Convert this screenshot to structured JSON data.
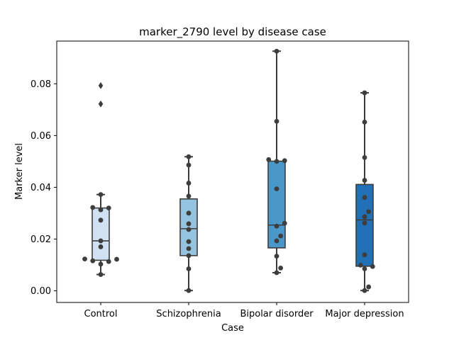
{
  "chart_data": {
    "type": "box",
    "title": "marker_2790 level by disease case",
    "xlabel": "Case",
    "ylabel": "Marker level",
    "ylim": [
      -0.0045,
      0.0965
    ],
    "yticks": [
      0.0,
      0.02,
      0.04,
      0.06,
      0.08
    ],
    "ytick_labels": [
      "0.00",
      "0.02",
      "0.04",
      "0.06",
      "0.08"
    ],
    "categories": [
      "Control",
      "Schizophrenia",
      "Bipolar disorder",
      "Major depression"
    ],
    "colors": [
      "#cfe1f2",
      "#94c4df",
      "#4a98c9",
      "#2270b5"
    ],
    "boxes": [
      {
        "q1": 0.0118,
        "median": 0.0193,
        "q3": 0.032,
        "whislo": 0.0063,
        "whishi": 0.0372,
        "fliers": [
          0.0793,
          0.0722
        ]
      },
      {
        "q1": 0.0136,
        "median": 0.024,
        "q3": 0.0355,
        "whislo": 0.0001,
        "whishi": 0.0518,
        "fliers": []
      },
      {
        "q1": 0.0166,
        "median": 0.0254,
        "q3": 0.0501,
        "whislo": 0.007,
        "whishi": 0.0926,
        "fliers": []
      },
      {
        "q1": 0.0095,
        "median": 0.0274,
        "q3": 0.0411,
        "whislo": 0.0001,
        "whishi": 0.0765,
        "fliers": []
      }
    ],
    "points": [
      [
        0.0372,
        0.0322,
        0.032,
        0.0313,
        0.0273,
        0.0193,
        0.017,
        0.0123,
        0.0122,
        0.0116,
        0.0113,
        0.0103,
        0.0063
      ],
      [
        0.0518,
        0.0486,
        0.0416,
        0.0366,
        0.03,
        0.0259,
        0.0237,
        0.019,
        0.0163,
        0.0136,
        0.0085,
        0.0001
      ],
      [
        0.0926,
        0.0655,
        0.0507,
        0.0503,
        0.05,
        0.0394,
        0.0261,
        0.025,
        0.0212,
        0.0193,
        0.0134,
        0.0088,
        0.007
      ],
      [
        0.0765,
        0.0652,
        0.0515,
        0.0427,
        0.0361,
        0.0306,
        0.0286,
        0.0262,
        0.0139,
        0.0099,
        0.0094,
        0.0085,
        0.0015,
        0.0001
      ]
    ],
    "grid": false,
    "legend": "none"
  }
}
